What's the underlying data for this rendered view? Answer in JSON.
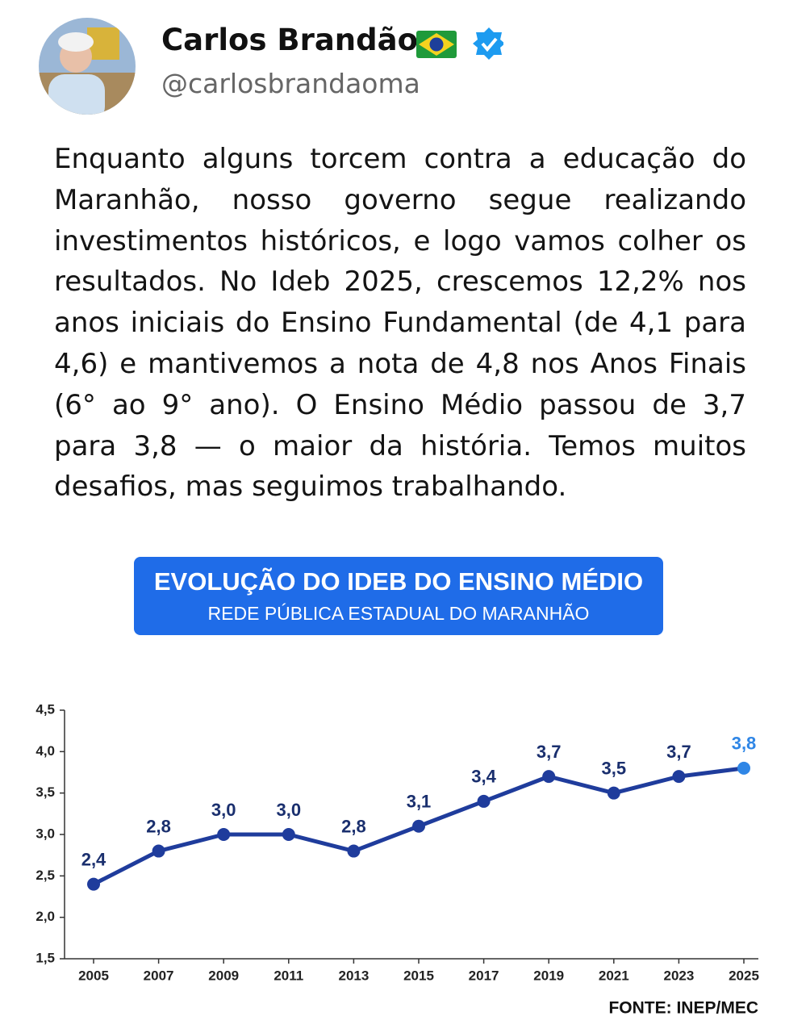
{
  "header": {
    "name": "Carlos Brandão",
    "handle": "@carlosbrandaoma"
  },
  "tweet": {
    "text": "Enquanto alguns torcem contra a educação do Maranhão, nosso governo segue realizando investimentos históricos, e logo vamos colher os resultados. No Ideb 2025, crescemos 12,2% nos anos iniciais do Ensino Fundamental (de 4,1 para 4,6) e mantivemos a nota de 4,8 nos Anos Finais (6° ao 9° ano). O Ensino Médio passou de 3,7 para 3,8 — o maior da história. Temos muitos desafios, mas seguimos trabalhando."
  },
  "chart_data": {
    "type": "line",
    "title": "EVOLUÇÃO DO IDEB DO ENSINO MÉDIO",
    "subtitle": "REDE PÚBLICA ESTADUAL DO MARANHÃO",
    "categories": [
      "2005",
      "2007",
      "2009",
      "2011",
      "2013",
      "2015",
      "2017",
      "2019",
      "2021",
      "2023",
      "2025"
    ],
    "values": [
      2.4,
      2.8,
      3.0,
      3.0,
      2.8,
      3.1,
      3.4,
      3.7,
      3.5,
      3.7,
      3.8
    ],
    "value_labels": [
      "2,4",
      "2,8",
      "3,0",
      "3,0",
      "2,8",
      "3,1",
      "3,4",
      "3,7",
      "3,5",
      "3,7",
      "3,8"
    ],
    "color": "#1f3c9c",
    "highlight_color": "#2f86e6",
    "ylim": [
      1.5,
      4.5
    ],
    "yticks": [
      {
        "value": 1.5,
        "label": "1,5"
      },
      {
        "value": 2.0,
        "label": "2,0"
      },
      {
        "value": 2.5,
        "label": "2,5"
      },
      {
        "value": 3.0,
        "label": "3,0"
      },
      {
        "value": 3.5,
        "label": "3,5"
      },
      {
        "value": 4.0,
        "label": "4,0"
      },
      {
        "value": 4.5,
        "label": "4,5"
      }
    ],
    "source": "FONTE: INEP/MEC"
  }
}
